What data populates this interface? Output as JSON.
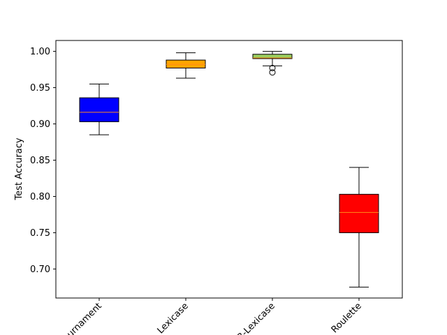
{
  "chart_data": {
    "type": "boxplot",
    "title": "",
    "xlabel": "",
    "ylabel": "Test Accuracy",
    "ylim": [
      0.66,
      1.015
    ],
    "yticks": [
      "0.70",
      "0.75",
      "0.80",
      "0.85",
      "0.90",
      "0.95",
      "1.00"
    ],
    "categories": [
      "Tournament",
      "Lexicase",
      "B-Lexicase",
      "Roulette"
    ],
    "boxes": [
      {
        "name": "Tournament",
        "whisker_low": 0.885,
        "q1": 0.903,
        "median": 0.916,
        "q3": 0.936,
        "whisker_high": 0.955,
        "outliers": [],
        "color": "#0000ff"
      },
      {
        "name": "Lexicase",
        "whisker_low": 0.963,
        "q1": 0.977,
        "median": 0.982,
        "q3": 0.988,
        "whisker_high": 0.998,
        "outliers": [],
        "color": "#ffa500"
      },
      {
        "name": "B-Lexicase",
        "whisker_low": 0.98,
        "q1": 0.99,
        "median": 0.991,
        "q3": 0.996,
        "whisker_high": 1.0,
        "outliers": [
          0.977,
          0.971
        ],
        "color": "#9acd60"
      },
      {
        "name": "Roulette",
        "whisker_low": 0.675,
        "q1": 0.75,
        "median": 0.778,
        "q3": 0.803,
        "whisker_high": 0.84,
        "outliers": [],
        "color": "#ff0000"
      }
    ],
    "median_color": "#ff8c1a",
    "grid": false,
    "legend": "none"
  }
}
